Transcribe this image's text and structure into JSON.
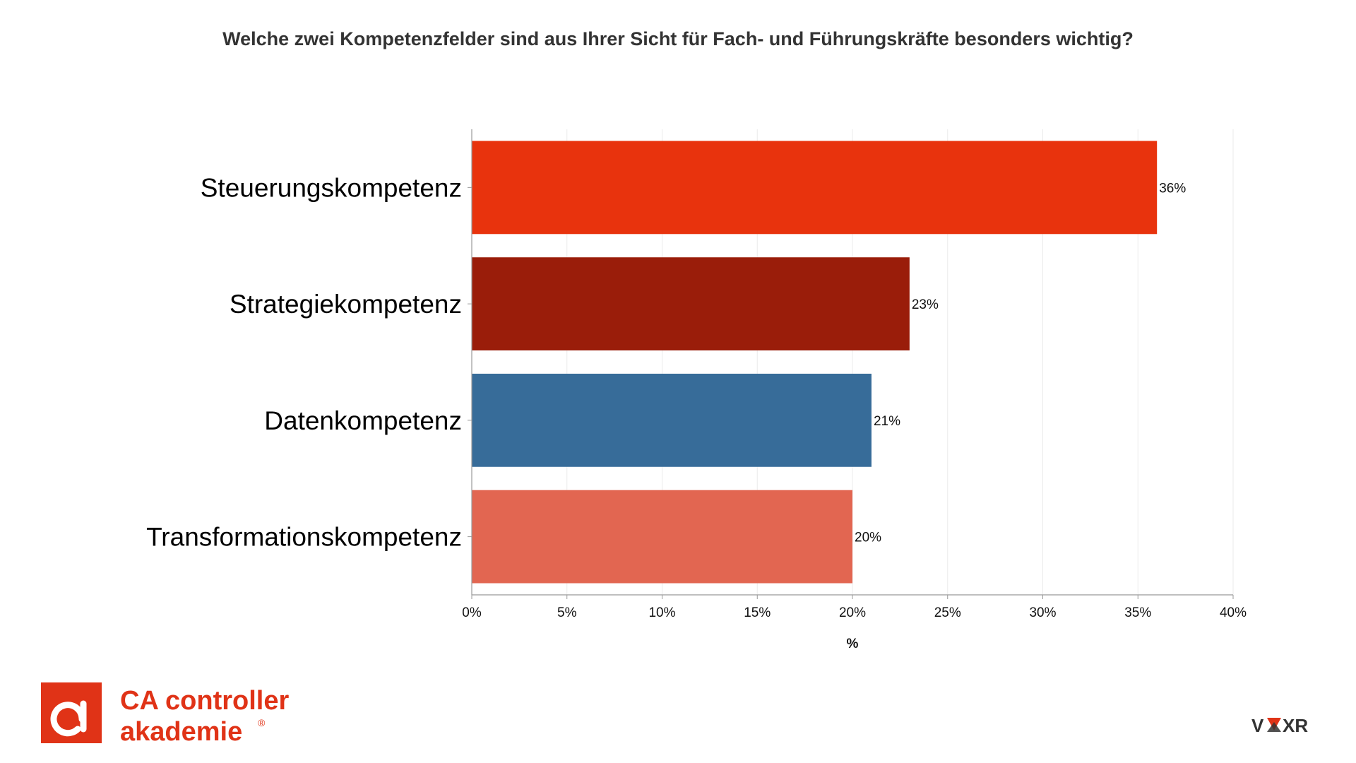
{
  "chart_data": {
    "type": "bar",
    "orientation": "horizontal",
    "title": "Welche zwei Kompetenzfelder sind aus Ihrer Sicht für Fach- und Führungskräfte besonders wichtig?",
    "xlabel": "%",
    "ylabel": "",
    "xlim": [
      0,
      40
    ],
    "xticks": [
      0,
      5,
      10,
      15,
      20,
      25,
      30,
      35,
      40
    ],
    "xtick_labels": [
      "0%",
      "5%",
      "10%",
      "15%",
      "20%",
      "25%",
      "30%",
      "35%",
      "40%"
    ],
    "categories": [
      "Steuerungskompetenz",
      "Strategiekompetenz",
      "Datenkompetenz",
      "Transformationskompetenz"
    ],
    "values": [
      36,
      23,
      21,
      20
    ],
    "value_labels": [
      "36%",
      "23%",
      "21%",
      "20%"
    ],
    "colors": [
      "#E8330D",
      "#9A1D0A",
      "#376C99",
      "#E26651"
    ],
    "grid": "vertical",
    "legend": "none"
  },
  "branding": {
    "logo_line1": "CA controller",
    "logo_line2": "akademie",
    "logo_registered": "®",
    "logo_color": "#E03317",
    "voxr_prefix": "V",
    "voxr_suffix": "XR",
    "voxr_text_color": "#333333",
    "voxr_accent": "#E03317"
  }
}
